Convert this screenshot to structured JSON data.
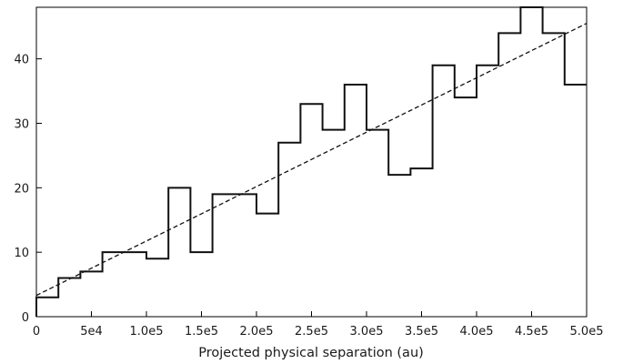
{
  "chart_data": {
    "type": "histogram",
    "title": "",
    "xlabel": "Projected physical separation (au)",
    "ylabel": "",
    "xlim": [
      0,
      500000
    ],
    "ylim": [
      0,
      48
    ],
    "grid": false,
    "bin_width": 20000,
    "bin_edges": [
      0,
      20000,
      40000,
      60000,
      80000,
      100000,
      120000,
      140000,
      160000,
      180000,
      200000,
      220000,
      240000,
      260000,
      280000,
      300000,
      320000,
      340000,
      360000,
      380000,
      400000,
      420000,
      440000,
      460000,
      480000,
      500000
    ],
    "counts": [
      3,
      6,
      7,
      10,
      10,
      9,
      20,
      10,
      19,
      19,
      16,
      27,
      33,
      29,
      36,
      29,
      22,
      23,
      39,
      34,
      39,
      44,
      48,
      44,
      36
    ],
    "fit_line": {
      "style": "dashed",
      "x": [
        0,
        500000
      ],
      "y": [
        3.3,
        45.5
      ]
    },
    "x_ticks": [
      {
        "value": 0,
        "label": "0"
      },
      {
        "value": 50000,
        "label": "5e4"
      },
      {
        "value": 100000,
        "label": "1.0e5"
      },
      {
        "value": 150000,
        "label": "1.5e5"
      },
      {
        "value": 200000,
        "label": "2.0e5"
      },
      {
        "value": 250000,
        "label": "2.5e5"
      },
      {
        "value": 300000,
        "label": "3.0e5"
      },
      {
        "value": 350000,
        "label": "3.5e5"
      },
      {
        "value": 400000,
        "label": "4.0e5"
      },
      {
        "value": 450000,
        "label": "4.5e5"
      },
      {
        "value": 500000,
        "label": "5.0e5"
      }
    ],
    "y_ticks": [
      {
        "value": 0,
        "label": "0"
      },
      {
        "value": 10,
        "label": "10"
      },
      {
        "value": 20,
        "label": "20"
      },
      {
        "value": 30,
        "label": "30"
      },
      {
        "value": 40,
        "label": "40"
      }
    ]
  }
}
